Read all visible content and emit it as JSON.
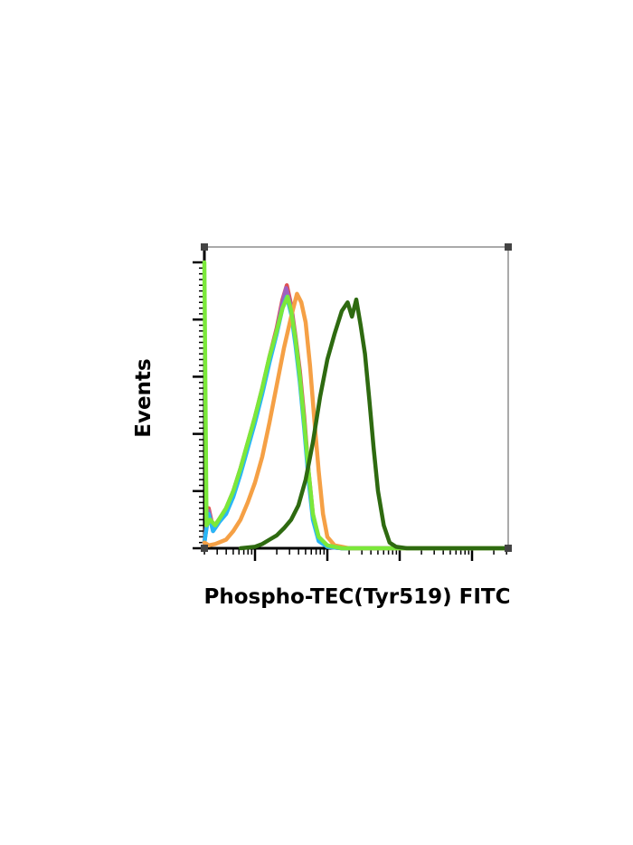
{
  "chart_data": {
    "type": "line",
    "subtype": "flow-cytometry-histogram",
    "xlabel": "Phospho-TEC(Tyr519) FITC",
    "ylabel": "Events",
    "x_scale": "log",
    "x_domain_log10": [
      0.3,
      4.5
    ],
    "y_domain": [
      0,
      100
    ],
    "grid": false,
    "legend": "none",
    "series": [
      {
        "color": "#e05050",
        "points": [
          [
            0.3,
            2
          ],
          [
            0.36,
            14
          ],
          [
            0.42,
            7
          ],
          [
            0.5,
            10
          ],
          [
            0.6,
            14
          ],
          [
            0.7,
            20
          ],
          [
            0.8,
            28
          ],
          [
            0.9,
            37
          ],
          [
            1.0,
            46
          ],
          [
            1.1,
            56
          ],
          [
            1.2,
            67
          ],
          [
            1.3,
            77
          ],
          [
            1.38,
            87
          ],
          [
            1.44,
            92
          ],
          [
            1.5,
            85
          ],
          [
            1.56,
            74
          ],
          [
            1.62,
            62
          ],
          [
            1.68,
            46
          ],
          [
            1.74,
            27
          ],
          [
            1.8,
            12
          ],
          [
            1.88,
            3
          ],
          [
            2.0,
            0.5
          ],
          [
            2.2,
            0
          ],
          [
            4.5,
            0
          ]
        ]
      },
      {
        "color": "#a060c0",
        "points": [
          [
            0.3,
            2
          ],
          [
            0.36,
            13
          ],
          [
            0.42,
            6
          ],
          [
            0.5,
            9
          ],
          [
            0.6,
            13
          ],
          [
            0.7,
            19
          ],
          [
            0.8,
            27
          ],
          [
            0.9,
            36
          ],
          [
            1.0,
            45
          ],
          [
            1.1,
            55
          ],
          [
            1.2,
            66
          ],
          [
            1.3,
            76
          ],
          [
            1.38,
            86
          ],
          [
            1.43,
            91
          ],
          [
            1.5,
            84
          ],
          [
            1.56,
            73
          ],
          [
            1.62,
            60
          ],
          [
            1.68,
            44
          ],
          [
            1.74,
            26
          ],
          [
            1.8,
            11
          ],
          [
            1.88,
            3
          ],
          [
            2.0,
            0.5
          ],
          [
            2.2,
            0
          ],
          [
            4.5,
            0
          ]
        ]
      },
      {
        "color": "#29b6f6",
        "points": [
          [
            0.3,
            2
          ],
          [
            0.36,
            12
          ],
          [
            0.42,
            6
          ],
          [
            0.5,
            9
          ],
          [
            0.6,
            12
          ],
          [
            0.7,
            18
          ],
          [
            0.8,
            26
          ],
          [
            0.9,
            35
          ],
          [
            1.0,
            44
          ],
          [
            1.1,
            54
          ],
          [
            1.2,
            65
          ],
          [
            1.3,
            75
          ],
          [
            1.38,
            84
          ],
          [
            1.44,
            88
          ],
          [
            1.5,
            82
          ],
          [
            1.56,
            71
          ],
          [
            1.62,
            58
          ],
          [
            1.68,
            42
          ],
          [
            1.74,
            24
          ],
          [
            1.8,
            10
          ],
          [
            1.88,
            2.5
          ],
          [
            2.0,
            0.5
          ],
          [
            2.2,
            0
          ],
          [
            4.5,
            0
          ]
        ]
      },
      {
        "color": "#f5a045",
        "points": [
          [
            0.3,
            2
          ],
          [
            0.36,
            1
          ],
          [
            0.45,
            1.5
          ],
          [
            0.6,
            3
          ],
          [
            0.7,
            6
          ],
          [
            0.8,
            10
          ],
          [
            0.9,
            16
          ],
          [
            1.0,
            23
          ],
          [
            1.1,
            32
          ],
          [
            1.2,
            44
          ],
          [
            1.3,
            57
          ],
          [
            1.4,
            70
          ],
          [
            1.5,
            81
          ],
          [
            1.58,
            89
          ],
          [
            1.64,
            86
          ],
          [
            1.7,
            79
          ],
          [
            1.76,
            64
          ],
          [
            1.82,
            45
          ],
          [
            1.88,
            27
          ],
          [
            1.94,
            12
          ],
          [
            2.0,
            4
          ],
          [
            2.1,
            1
          ],
          [
            2.3,
            0
          ],
          [
            4.5,
            0
          ]
        ]
      },
      {
        "color": "#7be83a",
        "points": [
          [
            0.3,
            100
          ],
          [
            0.33,
            8
          ],
          [
            0.38,
            10
          ],
          [
            0.45,
            8
          ],
          [
            0.5,
            10
          ],
          [
            0.6,
            14
          ],
          [
            0.7,
            20
          ],
          [
            0.8,
            28
          ],
          [
            0.9,
            37
          ],
          [
            1.0,
            46
          ],
          [
            1.1,
            56
          ],
          [
            1.2,
            67
          ],
          [
            1.3,
            76
          ],
          [
            1.38,
            84
          ],
          [
            1.45,
            88
          ],
          [
            1.5,
            83
          ],
          [
            1.56,
            73
          ],
          [
            1.62,
            60
          ],
          [
            1.68,
            44
          ],
          [
            1.74,
            27
          ],
          [
            1.8,
            12
          ],
          [
            1.88,
            4
          ],
          [
            2.0,
            1
          ],
          [
            2.2,
            0
          ],
          [
            4.5,
            0
          ]
        ]
      },
      {
        "color": "#2e6a10",
        "points": [
          [
            0.8,
            0
          ],
          [
            1.0,
            0.5
          ],
          [
            1.1,
            1.5
          ],
          [
            1.2,
            3
          ],
          [
            1.3,
            4.5
          ],
          [
            1.4,
            7
          ],
          [
            1.5,
            10
          ],
          [
            1.6,
            15
          ],
          [
            1.7,
            24
          ],
          [
            1.8,
            37
          ],
          [
            1.9,
            53
          ],
          [
            2.0,
            66
          ],
          [
            2.1,
            75
          ],
          [
            2.2,
            83
          ],
          [
            2.28,
            86
          ],
          [
            2.34,
            81
          ],
          [
            2.4,
            87
          ],
          [
            2.46,
            78
          ],
          [
            2.52,
            68
          ],
          [
            2.58,
            52
          ],
          [
            2.64,
            35
          ],
          [
            2.7,
            20
          ],
          [
            2.78,
            8
          ],
          [
            2.86,
            2
          ],
          [
            2.95,
            0.5
          ],
          [
            3.1,
            0
          ],
          [
            4.5,
            0
          ]
        ]
      }
    ]
  }
}
